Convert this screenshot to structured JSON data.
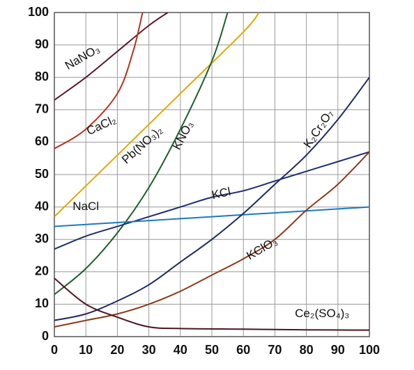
{
  "chart_data": {
    "type": "line",
    "xlim": [
      0,
      100
    ],
    "ylim": [
      0,
      100
    ],
    "xticks": [
      0,
      10,
      20,
      30,
      40,
      50,
      60,
      70,
      80,
      90,
      100
    ],
    "yticks": [
      0,
      10,
      20,
      30,
      40,
      50,
      60,
      70,
      80,
      90,
      100
    ],
    "grid": true,
    "series": [
      {
        "name": "NaNO₃",
        "color": "#5a1a2a",
        "x": [
          0,
          10,
          20,
          30,
          36
        ],
        "values": [
          73,
          80,
          88,
          96,
          100
        ]
      },
      {
        "name": "CaCl₂",
        "color": "#b5341e",
        "x": [
          0,
          10,
          20,
          25,
          28
        ],
        "values": [
          58,
          64,
          75,
          88,
          100
        ]
      },
      {
        "name": "Pb(NO₃)₂",
        "color": "#e0a800",
        "x": [
          0,
          20,
          40,
          60,
          65
        ],
        "values": [
          37,
          56,
          75,
          94,
          100
        ]
      },
      {
        "name": "KNO₃",
        "color": "#1d5e2a",
        "x": [
          0,
          10,
          20,
          30,
          40,
          50,
          55
        ],
        "values": [
          13,
          21,
          32,
          46,
          64,
          85,
          100
        ]
      },
      {
        "name": "KCl",
        "color": "#1e2d6e",
        "x": [
          0,
          10,
          20,
          30,
          40,
          50,
          60,
          70,
          80,
          90,
          100
        ],
        "values": [
          27,
          31,
          34,
          37,
          40,
          43,
          45,
          48,
          51,
          54,
          57
        ]
      },
      {
        "name": "NaCl",
        "color": "#1a7bbf",
        "x": [
          0,
          20,
          40,
          60,
          80,
          100
        ],
        "values": [
          34,
          35.2,
          36.4,
          37.6,
          38.8,
          40
        ]
      },
      {
        "name": "K₂Cr₂O₇",
        "color": "#1e2a5e",
        "x": [
          0,
          10,
          20,
          30,
          40,
          50,
          60,
          70,
          80,
          90,
          100
        ],
        "values": [
          5,
          7,
          11,
          16,
          23,
          30,
          38,
          47,
          56,
          67,
          80
        ]
      },
      {
        "name": "KClO₃",
        "color": "#8a3a1a",
        "x": [
          0,
          10,
          20,
          30,
          40,
          50,
          60,
          70,
          80,
          90,
          100
        ],
        "values": [
          3,
          5,
          7,
          10,
          14,
          19,
          24,
          30,
          39,
          47,
          57
        ]
      },
      {
        "name": "Ce₂(SO₄)₃",
        "color": "#4a1620",
        "x": [
          0,
          10,
          20,
          30,
          40,
          60,
          80,
          100
        ],
        "values": [
          18,
          10,
          6,
          3,
          2.5,
          2.3,
          2.1,
          2
        ]
      }
    ]
  }
}
